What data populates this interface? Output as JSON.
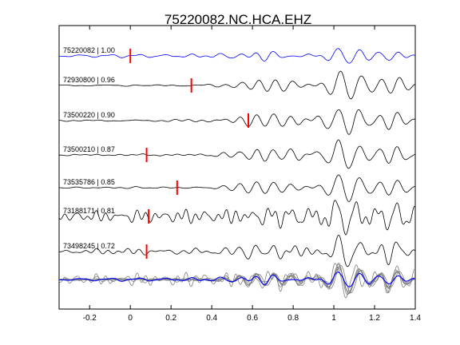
{
  "chart_data": {
    "type": "line",
    "title": "75220082.NC.HCA.EHZ",
    "xlabel": "",
    "ylabel": "",
    "xlim": [
      -0.35,
      1.4
    ],
    "x_ticks": [
      -0.2,
      0,
      0.2,
      0.4,
      0.6,
      0.8,
      1,
      1.2,
      1.4
    ],
    "x_tick_labels": [
      "-0.2",
      "0",
      "0.2",
      "0.4",
      "0.6",
      "0.8",
      "1",
      "1.2",
      "1.4"
    ],
    "grid": false,
    "colors": {
      "master": "#0000ff",
      "trace": "#000000",
      "overlay": "#808080",
      "pick": "#ff0000"
    },
    "traces": [
      {
        "label": "75220082 | 1.00",
        "pick_time": 0.0,
        "color": "#0000ff",
        "amp": 0.55,
        "lag": 0.0,
        "noise": 0.22,
        "nfreq": 1.0,
        "seed": 1
      },
      {
        "label": "72930800 | 0.96",
        "pick_time": 0.3,
        "color": "#000000",
        "amp": 0.95,
        "lag": 0.01,
        "noise": 0.15,
        "nfreq": 1.0,
        "seed": 2
      },
      {
        "label": "73500220 | 0.90",
        "pick_time": 0.58,
        "color": "#000000",
        "amp": 0.95,
        "lag": 0.0,
        "noise": 0.18,
        "nfreq": 1.0,
        "seed": 3
      },
      {
        "label": "73500210 | 0.87",
        "pick_time": 0.08,
        "color": "#000000",
        "amp": 0.95,
        "lag": 0.0,
        "noise": 0.16,
        "nfreq": 1.0,
        "seed": 4
      },
      {
        "label": "73535786 | 0.85",
        "pick_time": 0.23,
        "color": "#000000",
        "amp": 0.95,
        "lag": 0.0,
        "noise": 0.14,
        "nfreq": 1.0,
        "seed": 5
      },
      {
        "label": "73188171 | 0.81",
        "pick_time": 0.09,
        "color": "#000000",
        "amp": 0.85,
        "lag": -0.01,
        "noise": 0.75,
        "nfreq": 1.6,
        "seed": 6
      },
      {
        "label": "73498245 | 0.72",
        "pick_time": 0.08,
        "color": "#000000",
        "amp": 0.9,
        "lag": 0.0,
        "noise": 0.38,
        "nfreq": 1.2,
        "seed": 7
      }
    ],
    "overlay": {
      "description_color": "#808080",
      "master_color": "#0000ff"
    }
  }
}
